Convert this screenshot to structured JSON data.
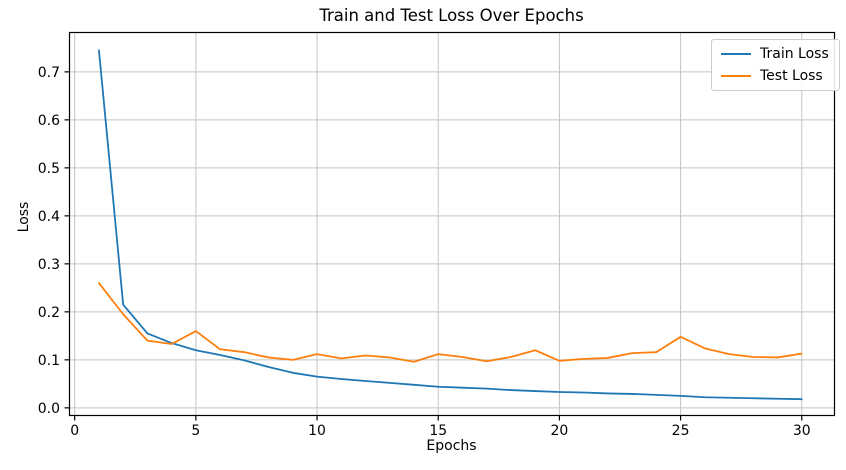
{
  "chart_data": {
    "type": "line",
    "title": "Train and Test Loss Over Epochs",
    "xlabel": "Epochs",
    "ylabel": "Loss",
    "x": [
      1,
      2,
      3,
      4,
      5,
      6,
      7,
      8,
      9,
      10,
      11,
      12,
      13,
      14,
      15,
      16,
      17,
      18,
      19,
      20,
      21,
      22,
      23,
      24,
      25,
      26,
      27,
      28,
      29,
      30
    ],
    "series": [
      {
        "name": "Train Loss",
        "color": "#1f77b4",
        "values": [
          0.745,
          0.215,
          0.155,
          0.135,
          0.12,
          0.11,
          0.099,
          0.085,
          0.073,
          0.065,
          0.06,
          0.056,
          0.052,
          0.048,
          0.044,
          0.042,
          0.04,
          0.037,
          0.035,
          0.033,
          0.032,
          0.03,
          0.029,
          0.027,
          0.025,
          0.022,
          0.021,
          0.02,
          0.019,
          0.018
        ]
      },
      {
        "name": "Test Loss",
        "color": "#ff7f0e",
        "values": [
          0.26,
          0.195,
          0.14,
          0.133,
          0.16,
          0.122,
          0.116,
          0.105,
          0.1,
          0.112,
          0.103,
          0.109,
          0.105,
          0.096,
          0.112,
          0.106,
          0.097,
          0.106,
          0.12,
          0.098,
          0.102,
          0.104,
          0.114,
          0.116,
          0.148,
          0.124,
          0.112,
          0.106,
          0.105,
          0.113
        ]
      }
    ],
    "xlim": [
      -0.235,
      31.33
    ],
    "ylim": [
      -0.017,
      0.781
    ],
    "xticks": [
      0,
      5,
      10,
      15,
      20,
      25,
      30
    ],
    "xtick_labels": [
      "0",
      "5",
      "10",
      "15",
      "20",
      "25",
      "30"
    ],
    "yticks": [
      0.0,
      0.1,
      0.2,
      0.3,
      0.4,
      0.5,
      0.6,
      0.7
    ],
    "ytick_labels": [
      "0.0",
      "0.1",
      "0.2",
      "0.3",
      "0.4",
      "0.5",
      "0.6",
      "0.7"
    ],
    "grid": true,
    "grid_color": "#c3c3c3",
    "spine_color": "#000000",
    "background": "#ffffff",
    "legend_position": "upper right",
    "line_width": 1.8
  },
  "legend": {
    "items": [
      {
        "label": "Train Loss"
      },
      {
        "label": "Test Loss"
      }
    ]
  }
}
